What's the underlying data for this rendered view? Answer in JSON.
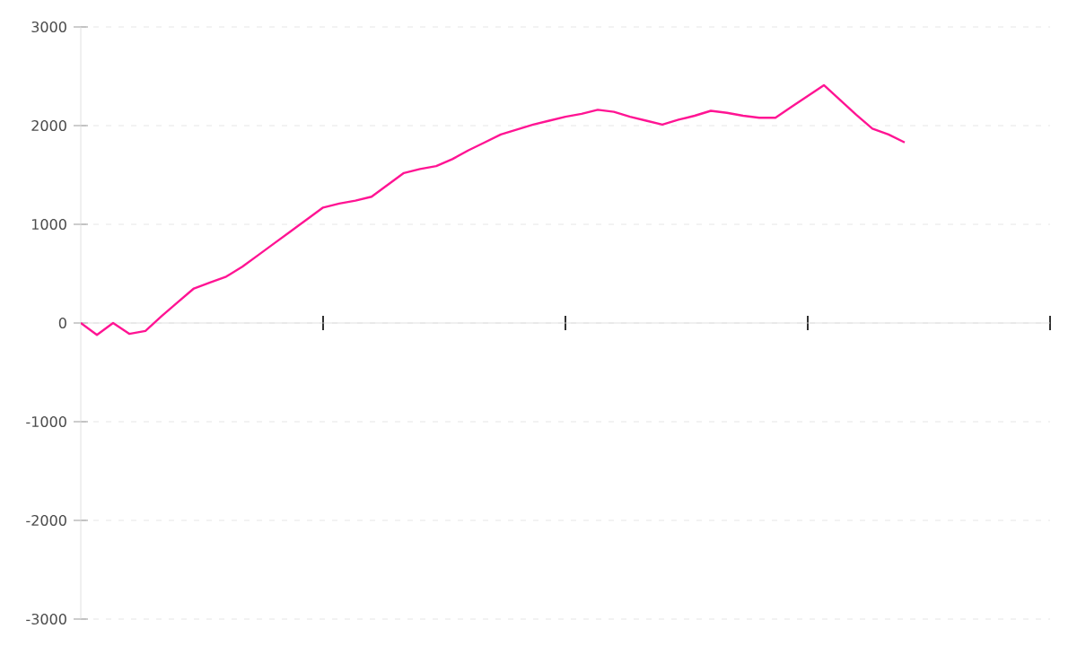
{
  "chart_data": {
    "type": "line",
    "categories": [
      null,
      null,
      null,
      null,
      null,
      null,
      null,
      null,
      null,
      null,
      null,
      null,
      null,
      null,
      null,
      null,
      null,
      null,
      null,
      null,
      null,
      null,
      null,
      null,
      null,
      null,
      null,
      null,
      null,
      null,
      null,
      null,
      null,
      null,
      null,
      null,
      null,
      null,
      null,
      null,
      null,
      null,
      null,
      null,
      null,
      null,
      null,
      null,
      null,
      null,
      null,
      null,
      null,
      null,
      null,
      null,
      null,
      null,
      null,
      null,
      null
    ],
    "values": [
      0,
      -120,
      0,
      -110,
      -80,
      70,
      210,
      350,
      410,
      470,
      570,
      690,
      810,
      930,
      1050,
      1170,
      1210,
      1240,
      1280,
      1400,
      1520,
      1560,
      1590,
      1660,
      1750,
      1830,
      1910,
      1960,
      2010,
      2050,
      2090,
      2120,
      2160,
      2140,
      2090,
      2050,
      2010,
      2060,
      2100,
      2150,
      2130,
      2100,
      2080,
      2080,
      2190,
      2300,
      2410,
      2260,
      2110,
      1970,
      1910,
      1830,
      null,
      null,
      null,
      null,
      null,
      null,
      null,
      null,
      null
    ],
    "color": "#ff1493",
    "ylim": [
      -3000,
      3000
    ],
    "yticks": [
      -3000,
      -2000,
      -1000,
      0,
      1000,
      2000,
      3000
    ],
    "tick_labels": "y",
    "grid": "y"
  }
}
